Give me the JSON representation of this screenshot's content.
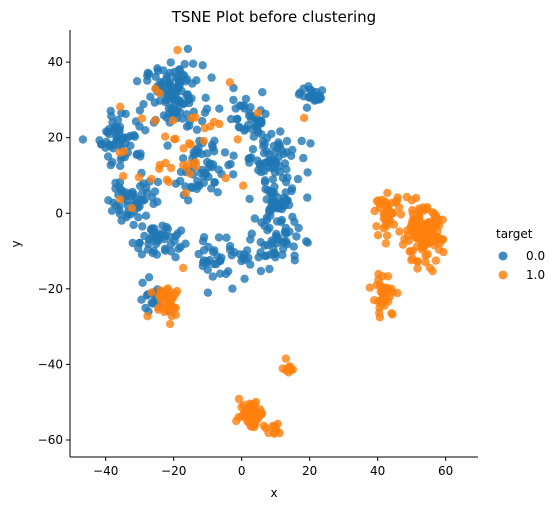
{
  "chart_data": {
    "type": "scatter",
    "title": "TSNE Plot before clustering",
    "xlabel": "x",
    "ylabel": "y",
    "xlim": [
      -50.5,
      69.5
    ],
    "ylim": [
      -64.5,
      48.5
    ],
    "xticks": [
      -40,
      -20,
      0,
      20,
      40,
      60
    ],
    "yticks": [
      -60,
      -40,
      -20,
      0,
      20,
      40
    ],
    "xtick_labels": [
      "−40",
      "−20",
      "0",
      "20",
      "40",
      "60"
    ],
    "ytick_labels": [
      "−60",
      "−40",
      "−20",
      "0",
      "20",
      "40"
    ],
    "grid": false,
    "legend": {
      "title": "target",
      "placement": "right",
      "entries": [
        {
          "label": "0.0",
          "color": "#1f77b4"
        },
        {
          "label": "1.0",
          "color": "#ff7f0e"
        }
      ]
    },
    "series": [
      {
        "name": "0.0",
        "color": "#1f77b4",
        "clusters": [
          {
            "center": [
              -20,
              31
            ],
            "spread": [
              7,
              7
            ],
            "count": 110
          },
          {
            "center": [
              -35,
              20
            ],
            "spread": [
              6,
              6
            ],
            "count": 60
          },
          {
            "center": [
              -32,
              4
            ],
            "spread": [
              6,
              6
            ],
            "count": 55
          },
          {
            "center": [
              -25,
              -7
            ],
            "spread": [
              6,
              4
            ],
            "count": 45
          },
          {
            "center": [
              -12,
              12
            ],
            "spread": [
              6,
              6
            ],
            "count": 55
          },
          {
            "center": [
              2,
              25
            ],
            "spread": [
              6,
              5
            ],
            "count": 40
          },
          {
            "center": [
              8,
              15
            ],
            "spread": [
              7,
              6
            ],
            "count": 60
          },
          {
            "center": [
              10,
              3
            ],
            "spread": [
              6,
              6
            ],
            "count": 50
          },
          {
            "center": [
              10,
              -8
            ],
            "spread": [
              6,
              5
            ],
            "count": 50
          },
          {
            "center": [
              -5,
              -12
            ],
            "spread": [
              7,
              5
            ],
            "count": 40
          },
          {
            "center": [
              -25,
              -22
            ],
            "spread": [
              5,
              4
            ],
            "count": 20
          },
          {
            "center": [
              21,
              31
            ],
            "spread": [
              3,
              2
            ],
            "count": 25
          }
        ]
      },
      {
        "name": "1.0",
        "color": "#ff7f0e",
        "clusters": [
          {
            "center": [
              53,
              -6
            ],
            "spread": [
              5,
              6
            ],
            "count": 120
          },
          {
            "center": [
              43,
              0
            ],
            "spread": [
              3,
              4
            ],
            "count": 40
          },
          {
            "center": [
              42,
              -22
            ],
            "spread": [
              3,
              5
            ],
            "count": 35
          },
          {
            "center": [
              -22,
              -23
            ],
            "spread": [
              4,
              4
            ],
            "count": 40
          },
          {
            "center": [
              3,
              -53
            ],
            "spread": [
              3,
              3
            ],
            "count": 55
          },
          {
            "center": [
              14,
              -41
            ],
            "spread": [
              1.5,
              1.5
            ],
            "count": 12
          },
          {
            "center": [
              9,
              -57
            ],
            "spread": [
              2,
              1.2
            ],
            "count": 10
          },
          {
            "center": [
              -18,
              18
            ],
            "spread": [
              18,
              16
            ],
            "count": 45
          },
          {
            "center": [
              19,
              25.5
            ],
            "spread": [
              0.5,
              0.5
            ],
            "count": 1
          },
          {
            "center": [
              -19,
              43
            ],
            "spread": [
              0.5,
              0.5
            ],
            "count": 1
          }
        ]
      }
    ]
  }
}
